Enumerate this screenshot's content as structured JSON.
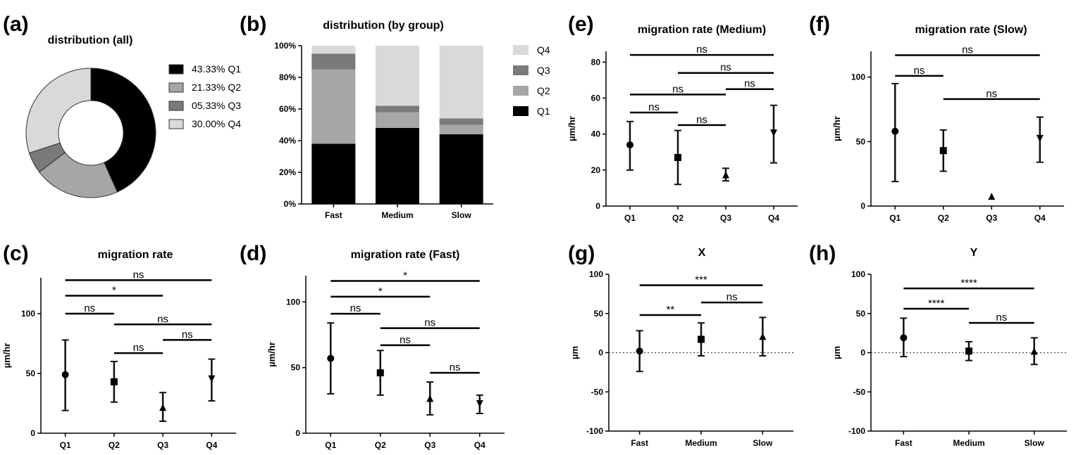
{
  "chart_data": [
    {
      "panel": "(a)",
      "type": "pie",
      "title": "distribution (all)",
      "slices": [
        {
          "label": "Q1",
          "value": 43.33,
          "text": "43.33%",
          "color": "#000000"
        },
        {
          "label": "Q2",
          "value": 21.33,
          "text": "21.33%",
          "color": "#a6a6a6"
        },
        {
          "label": "Q3",
          "value": 5.33,
          "text": "05.33%",
          "color": "#7a7a7a"
        },
        {
          "label": "Q4",
          "value": 30.0,
          "text": "30.00%",
          "color": "#d9d9d9"
        }
      ]
    },
    {
      "panel": "(b)",
      "type": "bar",
      "stacked": true,
      "title": "distribution (by group)",
      "categories": [
        "Fast",
        "Medium",
        "Slow"
      ],
      "yticks": [
        "0%",
        "20%",
        "40%",
        "60%",
        "80%",
        "100%"
      ],
      "ylim": [
        0,
        100
      ],
      "series": [
        {
          "name": "Q1",
          "color": "#000000",
          "values": [
            38,
            48,
            44
          ]
        },
        {
          "name": "Q2",
          "color": "#a6a6a6",
          "values": [
            47,
            10,
            6
          ]
        },
        {
          "name": "Q3",
          "color": "#7a7a7a",
          "values": [
            10,
            4,
            4
          ]
        },
        {
          "name": "Q4",
          "color": "#d9d9d9",
          "values": [
            5,
            38,
            46
          ]
        }
      ],
      "legend_order": [
        "Q4",
        "Q3",
        "Q2",
        "Q1"
      ]
    },
    {
      "panel": "(c)",
      "type": "scatter",
      "title": "migration rate",
      "ylabel": "µm/hr",
      "categories": [
        "Q1",
        "Q2",
        "Q3",
        "Q4"
      ],
      "ylim": [
        0,
        130
      ],
      "yticks": [
        0,
        50,
        100
      ],
      "points": [
        {
          "mean": 49,
          "low": 19,
          "high": 78,
          "marker": "circle"
        },
        {
          "mean": 43,
          "low": 26,
          "high": 60,
          "marker": "square"
        },
        {
          "mean": 21,
          "low": 10,
          "high": 34,
          "marker": "triangle-up"
        },
        {
          "mean": 46,
          "low": 27,
          "high": 62,
          "marker": "triangle-down"
        }
      ],
      "comparisons": [
        {
          "from": "Q1",
          "to": "Q4",
          "label": "ns",
          "y": 128
        },
        {
          "from": "Q1",
          "to": "Q3",
          "label": "*",
          "y": 115
        },
        {
          "from": "Q1",
          "to": "Q2",
          "label": "ns",
          "y": 100
        },
        {
          "from": "Q2",
          "to": "Q4",
          "label": "ns",
          "y": 91
        },
        {
          "from": "Q3",
          "to": "Q4",
          "label": "ns",
          "y": 78
        },
        {
          "from": "Q2",
          "to": "Q3",
          "label": "ns",
          "y": 67
        }
      ]
    },
    {
      "panel": "(d)",
      "type": "scatter",
      "title": "migration rate (Fast)",
      "ylabel": "µm/hr",
      "categories": [
        "Q1",
        "Q2",
        "Q3",
        "Q4"
      ],
      "ylim": [
        0,
        120
      ],
      "yticks": [
        0,
        50,
        100
      ],
      "points": [
        {
          "mean": 57,
          "low": 30,
          "high": 84,
          "marker": "circle"
        },
        {
          "mean": 46,
          "low": 29,
          "high": 63,
          "marker": "square"
        },
        {
          "mean": 26,
          "low": 14,
          "high": 39,
          "marker": "triangle-up"
        },
        {
          "mean": 23,
          "low": 15,
          "high": 29,
          "marker": "triangle-down"
        }
      ],
      "comparisons": [
        {
          "from": "Q1",
          "to": "Q4",
          "label": "*",
          "y": 116
        },
        {
          "from": "Q1",
          "to": "Q3",
          "label": "*",
          "y": 104
        },
        {
          "from": "Q1",
          "to": "Q2",
          "label": "ns",
          "y": 91
        },
        {
          "from": "Q2",
          "to": "Q4",
          "label": "ns",
          "y": 80
        },
        {
          "from": "Q2",
          "to": "Q3",
          "label": "ns",
          "y": 67
        },
        {
          "from": "Q3",
          "to": "Q4",
          "label": "ns",
          "y": 46
        }
      ]
    },
    {
      "panel": "(e)",
      "type": "scatter",
      "title": "migration rate (Medium)",
      "ylabel": "µm/hr",
      "categories": [
        "Q1",
        "Q2",
        "Q3",
        "Q4"
      ],
      "ylim": [
        0,
        86
      ],
      "yticks": [
        0,
        20,
        40,
        60,
        80
      ],
      "points": [
        {
          "mean": 34,
          "low": 20,
          "high": 47,
          "marker": "circle"
        },
        {
          "mean": 27,
          "low": 12,
          "high": 42,
          "marker": "square"
        },
        {
          "mean": 17,
          "low": 14,
          "high": 21,
          "marker": "triangle-up"
        },
        {
          "mean": 41,
          "low": 24,
          "high": 56,
          "marker": "triangle-down"
        }
      ],
      "comparisons": [
        {
          "from": "Q1",
          "to": "Q4",
          "label": "ns",
          "y": 84
        },
        {
          "from": "Q2",
          "to": "Q4",
          "label": "ns",
          "y": 74
        },
        {
          "from": "Q3",
          "to": "Q4",
          "label": "ns",
          "y": 65
        },
        {
          "from": "Q1",
          "to": "Q3",
          "label": "ns",
          "y": 62
        },
        {
          "from": "Q1",
          "to": "Q2",
          "label": "ns",
          "y": 52
        },
        {
          "from": "Q2",
          "to": "Q3",
          "label": "ns",
          "y": 45
        }
      ]
    },
    {
      "panel": "(f)",
      "type": "scatter",
      "title": "migration rate (Slow)",
      "ylabel": "µm/hr",
      "categories": [
        "Q1",
        "Q2",
        "Q3",
        "Q4"
      ],
      "ylim": [
        0,
        120
      ],
      "yticks": [
        0,
        50,
        100
      ],
      "points": [
        {
          "mean": 58,
          "low": 19,
          "high": 95,
          "marker": "circle"
        },
        {
          "mean": 43,
          "low": 27,
          "high": 59,
          "marker": "square"
        },
        {
          "mean": 7,
          "low": 7,
          "high": 7,
          "marker": "triangle-up"
        },
        {
          "mean": 53,
          "low": 34,
          "high": 69,
          "marker": "triangle-down"
        }
      ],
      "comparisons": [
        {
          "from": "Q1",
          "to": "Q4",
          "label": "ns",
          "y": 117
        },
        {
          "from": "Q1",
          "to": "Q2",
          "label": "ns",
          "y": 101
        },
        {
          "from": "Q2",
          "to": "Q4",
          "label": "ns",
          "y": 83
        }
      ]
    },
    {
      "panel": "(g)",
      "type": "scatter",
      "title": "X",
      "ylabel": "µm",
      "categories": [
        "Fast",
        "Medium",
        "Slow"
      ],
      "ylim": [
        -100,
        100
      ],
      "yticks": [
        -100,
        -50,
        0,
        50,
        100
      ],
      "zero_line": true,
      "points": [
        {
          "mean": 2,
          "low": -24,
          "high": 28,
          "marker": "circle"
        },
        {
          "mean": 17,
          "low": -4,
          "high": 38,
          "marker": "square"
        },
        {
          "mean": 20,
          "low": -4,
          "high": 45,
          "marker": "triangle-up"
        }
      ],
      "comparisons": [
        {
          "from": "Fast",
          "to": "Slow",
          "label": "***",
          "y": 86
        },
        {
          "from": "Medium",
          "to": "Slow",
          "label": "ns",
          "y": 64
        },
        {
          "from": "Fast",
          "to": "Medium",
          "label": "**",
          "y": 48
        }
      ]
    },
    {
      "panel": "(h)",
      "type": "scatter",
      "title": "Y",
      "ylabel": "µm",
      "categories": [
        "Fast",
        "Medium",
        "Slow"
      ],
      "ylim": [
        -100,
        100
      ],
      "yticks": [
        -100,
        -50,
        0,
        50,
        100
      ],
      "zero_line": true,
      "points": [
        {
          "mean": 19,
          "low": -5,
          "high": 44,
          "marker": "circle"
        },
        {
          "mean": 2,
          "low": -10,
          "high": 14,
          "marker": "square"
        },
        {
          "mean": 1,
          "low": -15,
          "high": 19,
          "marker": "triangle-up"
        }
      ],
      "comparisons": [
        {
          "from": "Fast",
          "to": "Slow",
          "label": "****",
          "y": 82
        },
        {
          "from": "Fast",
          "to": "Medium",
          "label": "****",
          "y": 56
        },
        {
          "from": "Medium",
          "to": "Slow",
          "label": "ns",
          "y": 38
        }
      ]
    }
  ]
}
